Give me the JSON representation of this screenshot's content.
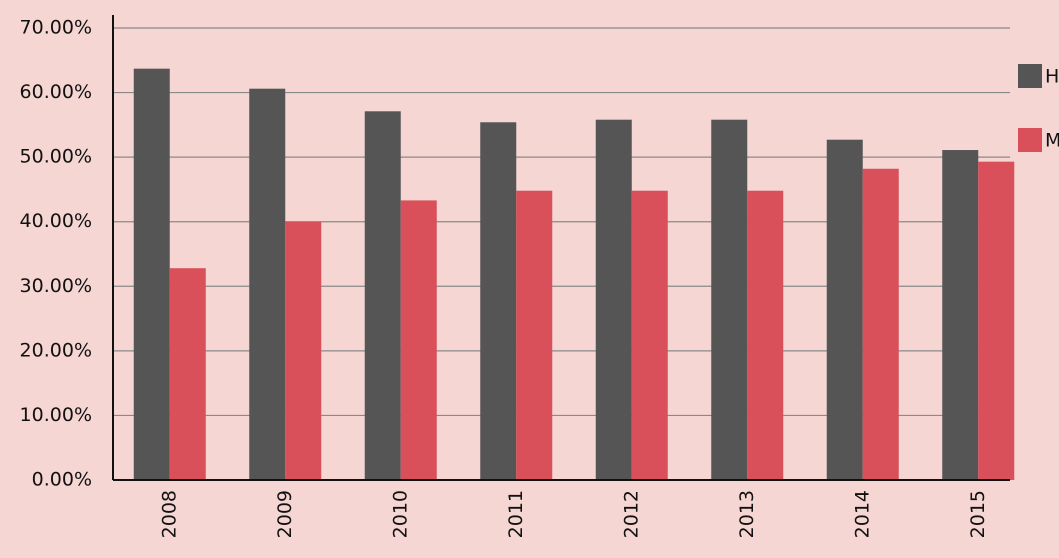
{
  "chart_data": {
    "type": "bar",
    "categories": [
      "2008",
      "2009",
      "2010",
      "2011",
      "2012",
      "2013",
      "2014",
      "2015"
    ],
    "series": [
      {
        "name": "H",
        "color": "#555555",
        "values": [
          63.7,
          60.6,
          57.1,
          55.4,
          55.8,
          55.8,
          52.7,
          51.1
        ]
      },
      {
        "name": "M",
        "color": "#d94f5a",
        "values": [
          32.8,
          40.0,
          43.3,
          44.8,
          44.8,
          44.8,
          48.2,
          49.3
        ]
      }
    ],
    "ylim": [
      0,
      70
    ],
    "yticks": [
      {
        "value": 0,
        "label": "0.00%"
      },
      {
        "value": 10,
        "label": "10.00%"
      },
      {
        "value": 20,
        "label": "20.00%"
      },
      {
        "value": 30,
        "label": "30.00%"
      },
      {
        "value": 40,
        "label": "40.00%"
      },
      {
        "value": 50,
        "label": "50.00%"
      },
      {
        "value": 60,
        "label": "60.00%"
      },
      {
        "value": 70,
        "label": "70.00%"
      }
    ],
    "grid": true
  }
}
